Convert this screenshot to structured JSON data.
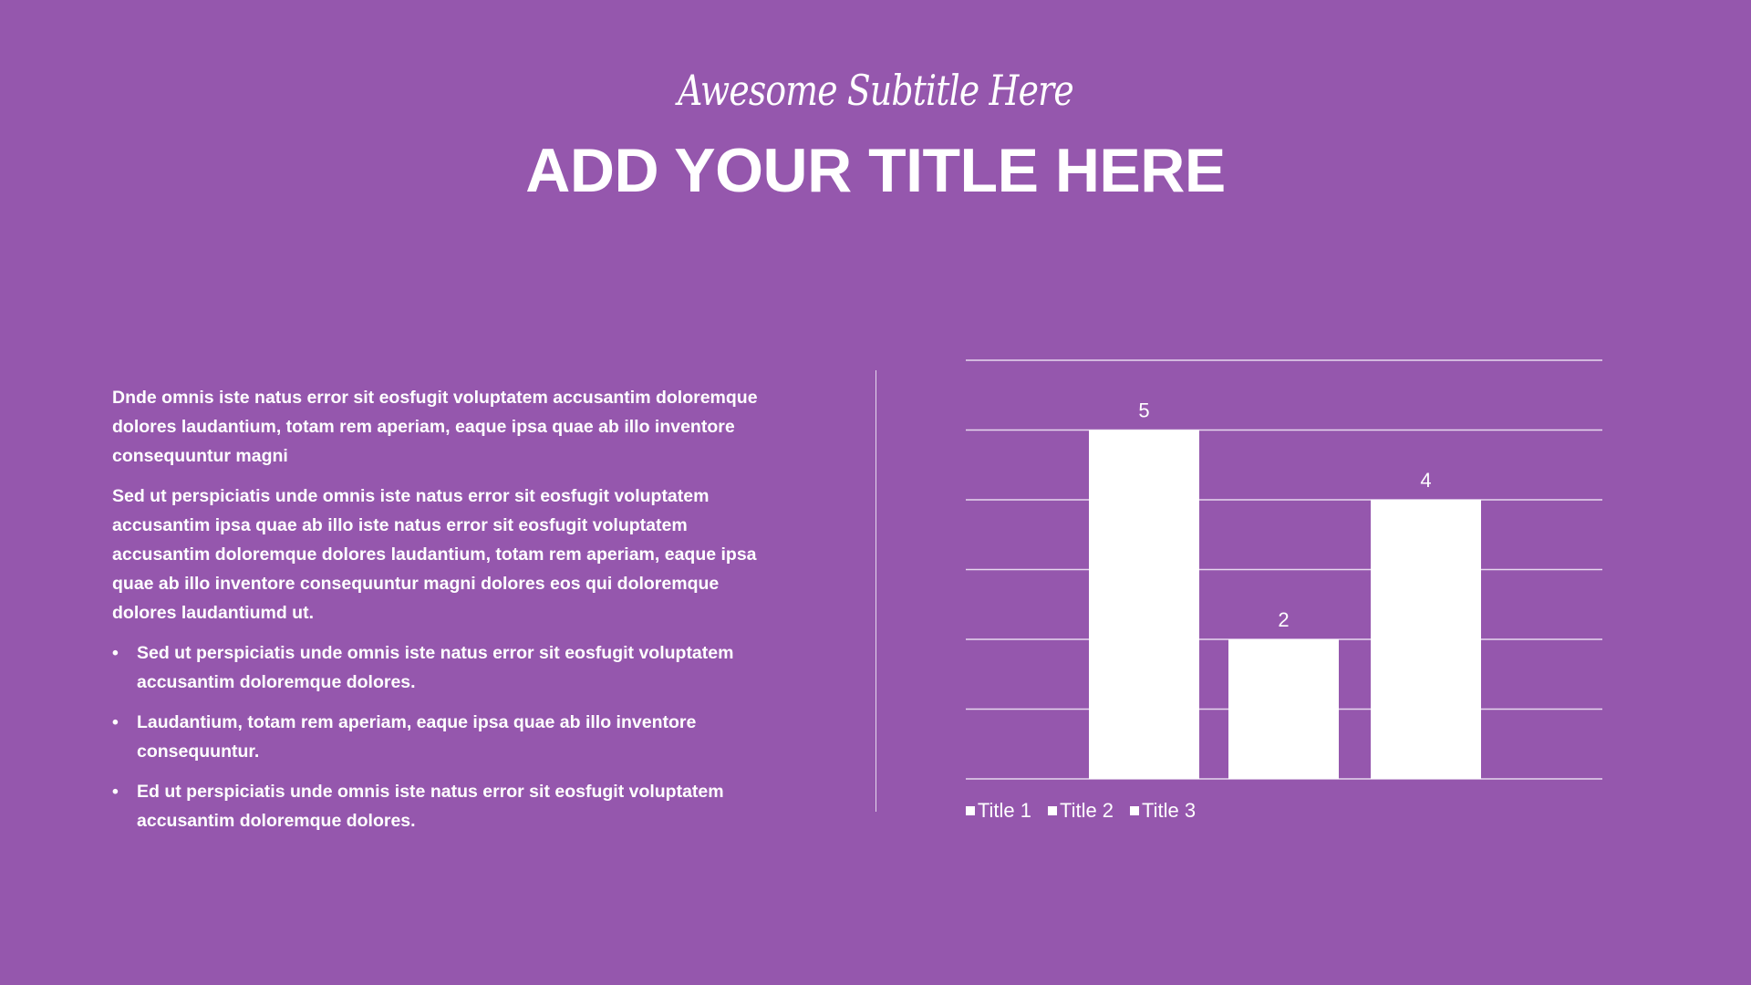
{
  "header": {
    "subtitle": "Awesome Subtitle Here",
    "title": "ADD YOUR TITLE HERE"
  },
  "body": {
    "paragraphs": [
      "Dnde omnis iste natus error sit eosfugit voluptatem accusantim doloremque dolores laudantium, totam rem aperiam, eaque ipsa quae ab illo inventore consequuntur magni",
      "Sed ut perspiciatis unde omnis iste natus error sit eosfugit voluptatem accusantim ipsa quae ab illo iste natus error sit eosfugit voluptatem accusantim doloremque dolores laudantium, totam rem aperiam, eaque ipsa quae ab illo inventore consequuntur magni dolores eos qui doloremque dolores laudantiumd ut."
    ],
    "bullet_glyph": "•",
    "bullets": [
      "Sed ut perspiciatis unde omnis iste natus error sit eosfugit voluptatem accusantim doloremque dolores.",
      "Laudantium, totam rem aperiam, eaque ipsa quae ab illo inventore consequuntur.",
      "Ed ut perspiciatis unde omnis iste natus error sit eosfugit voluptatem accusantim doloremque dolores."
    ]
  },
  "colors": {
    "background": "#9557ad",
    "bars": "#ffffff",
    "gridlines": "#e6d8ee"
  },
  "chart_data": {
    "type": "bar",
    "categories": [
      "Title 1",
      "Title 2",
      "Title 3"
    ],
    "series": [
      {
        "name": "Title 1",
        "values": [
          5,
          null,
          null
        ]
      },
      {
        "name": "Title 2",
        "values": [
          null,
          2,
          null
        ]
      },
      {
        "name": "Title 3",
        "values": [
          null,
          null,
          4
        ]
      }
    ],
    "values": [
      5,
      2,
      4
    ],
    "data_labels": [
      "5",
      "2",
      "4"
    ],
    "ylim": [
      0,
      6
    ],
    "grid": true,
    "legend": [
      "Title 1",
      "Title 2",
      "Title 3"
    ],
    "legend_position": "bottom",
    "xlabel": "",
    "ylabel": ""
  }
}
